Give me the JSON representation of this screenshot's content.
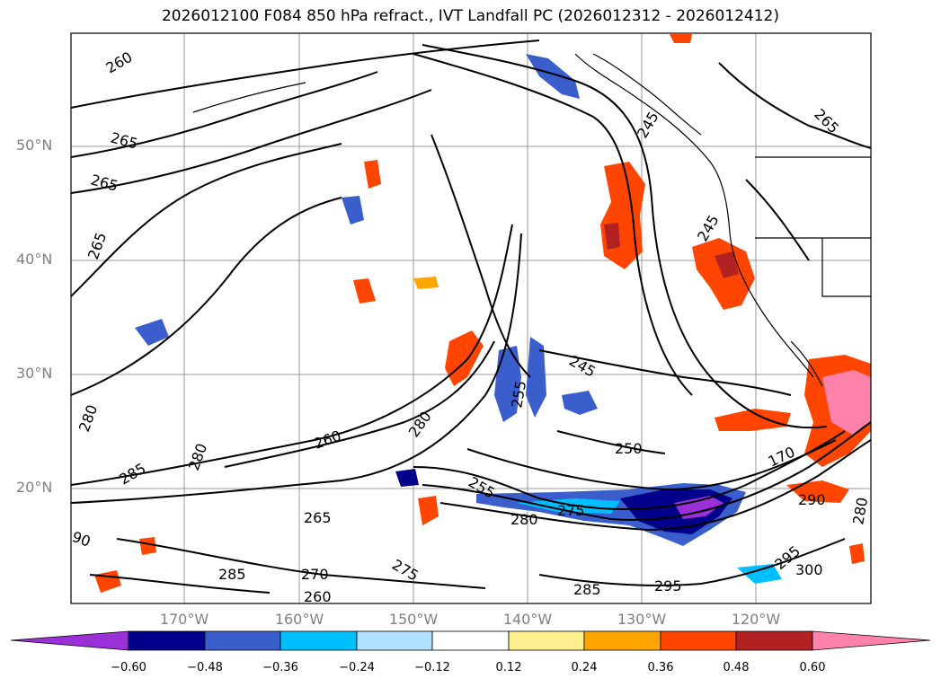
{
  "title": "2026012100 F084 850 hPa refract., IVT Landfall PC (2026012312 - 2026012412)",
  "lat_ticks": [
    "50°N",
    "40°N",
    "30°N",
    "20°N"
  ],
  "lon_ticks": [
    "170°W",
    "160°W",
    "150°W",
    "140°W",
    "130°W",
    "120°W"
  ],
  "contour_labels": [
    "260",
    "265",
    "265",
    "265",
    "245",
    "265",
    "245",
    "245",
    "255",
    "280",
    "260",
    "280",
    "285",
    "280",
    "270",
    "275",
    "250",
    "255",
    "280",
    "275",
    "170",
    "290",
    "280",
    "295",
    "300",
    "285",
    "295",
    "265",
    "260",
    "285",
    "280",
    "90"
  ],
  "colorbar": {
    "labels": [
      "−0.60",
      "−0.48",
      "−0.36",
      "−0.24",
      "−0.12",
      "0.12",
      "0.24",
      "0.36",
      "0.48",
      "0.60"
    ],
    "colors": {
      "under": "#9b30d9",
      "bins": [
        "#9b30d9",
        "#00008b",
        "#3a5fcd",
        "#00bfff",
        "#b0e2ff",
        "#ffffff",
        "#fff08f",
        "#ffa500",
        "#ff4500",
        "#b22222",
        "#ff82ab"
      ]
    }
  }
}
